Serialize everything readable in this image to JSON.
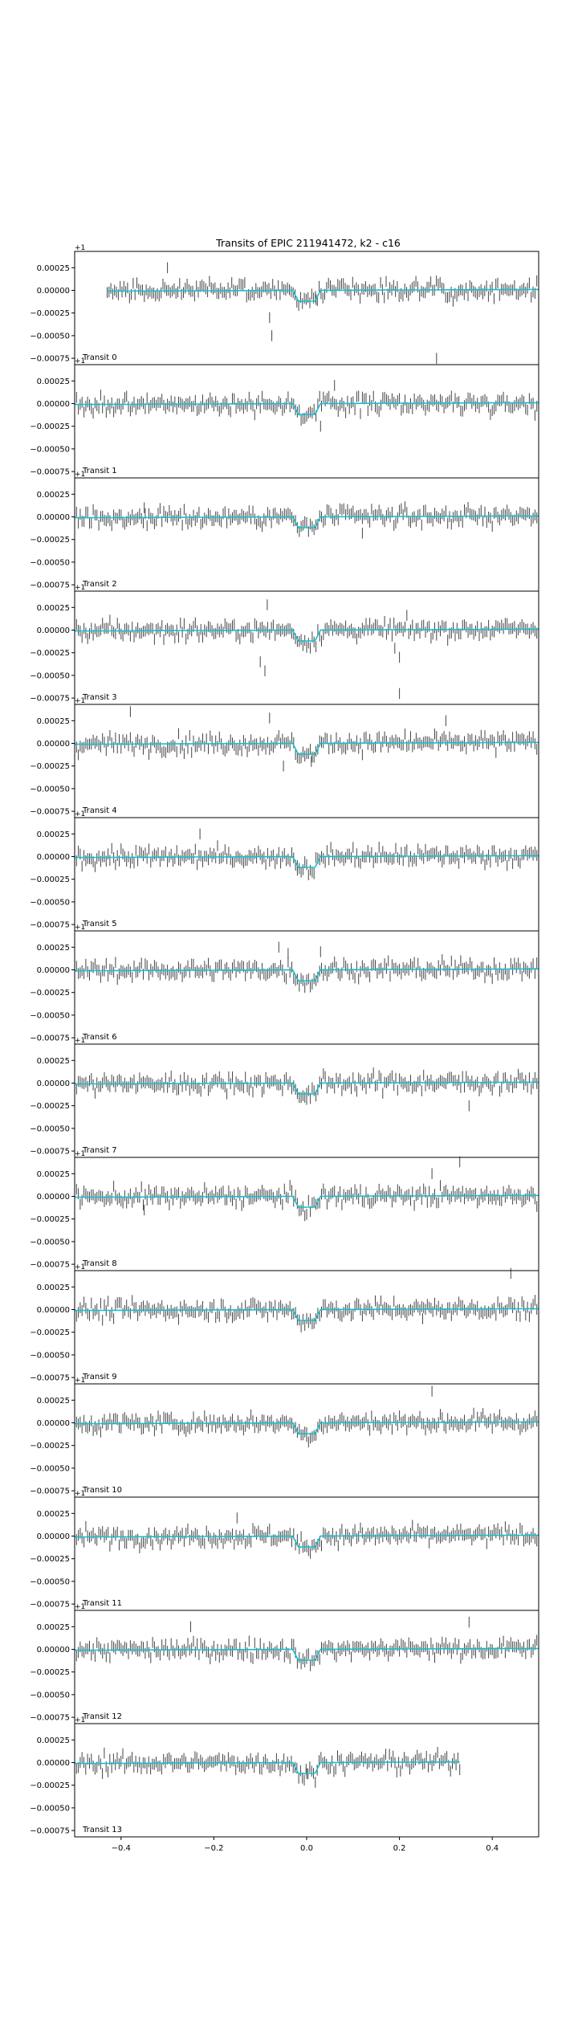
{
  "chart_data": {
    "type": "scatter",
    "title": "Transits of EPIC 211941472, k2 - c16",
    "xlabel": "",
    "ylabel": "",
    "xlim": [
      -0.5,
      0.5
    ],
    "ylim": [
      -0.00082,
      0.00043
    ],
    "y_offset_label": "+1",
    "x_ticks": [
      -0.4,
      -0.2,
      0.0,
      0.2,
      0.4
    ],
    "x_tick_labels": [
      "−0.4",
      "−0.2",
      "0.0",
      "0.2",
      "0.4"
    ],
    "y_ticks": [
      0.00025,
      0.0,
      -0.00025,
      -0.0005,
      -0.00075
    ],
    "y_tick_labels": [
      "0.00025",
      "0.00000",
      "−0.00025",
      "−0.00050",
      "−0.00075"
    ],
    "grid": false,
    "error_bar_halfwidth": 6e-05,
    "colors": {
      "data": "#444444",
      "model": "#17becf",
      "axes": "#000000"
    },
    "transit_model": {
      "depth": 0.00012,
      "duration": 0.06,
      "ingress": 0.012,
      "baseline_slope": 2e-05
    },
    "transits": [
      {
        "label": "Transit 0",
        "x_start": -0.43,
        "x_end": 0.5,
        "outliers": [
          [
            -0.08,
            -0.0003
          ],
          [
            -0.075,
            -0.0005
          ],
          [
            0.28,
            -0.00075
          ],
          [
            0.02,
            -0.0001
          ],
          [
            -0.3,
            0.00025
          ]
        ]
      },
      {
        "label": "Transit 1",
        "x_start": -0.5,
        "x_end": 0.5,
        "outliers": [
          [
            0.03,
            -0.00025
          ],
          [
            0.06,
            0.0002
          ]
        ]
      },
      {
        "label": "Transit 2",
        "x_start": -0.5,
        "x_end": 0.5,
        "outliers": [
          [
            0.12,
            -0.00018
          ],
          [
            -0.35,
            0.0001
          ]
        ]
      },
      {
        "label": "Transit 3",
        "x_start": -0.5,
        "x_end": 0.5,
        "outliers": [
          [
            -0.1,
            -0.00035
          ],
          [
            -0.09,
            -0.00045
          ],
          [
            -0.085,
            0.00028
          ],
          [
            0.19,
            -0.0002
          ],
          [
            0.2,
            -0.0003
          ],
          [
            0.2,
            -0.0007
          ]
        ]
      },
      {
        "label": "Transit 4",
        "x_start": -0.5,
        "x_end": 0.5,
        "outliers": [
          [
            -0.38,
            0.00035
          ],
          [
            -0.08,
            0.00028
          ],
          [
            -0.05,
            -0.00025
          ],
          [
            0.3,
            0.00025
          ],
          [
            0.01,
            -0.0002
          ]
        ]
      },
      {
        "label": "Transit 5",
        "x_start": -0.5,
        "x_end": 0.5,
        "outliers": [
          [
            -0.23,
            0.00025
          ],
          [
            -0.02,
            -0.0001
          ]
        ]
      },
      {
        "label": "Transit 6",
        "x_start": -0.5,
        "x_end": 0.5,
        "outliers": [
          [
            -0.06,
            0.00025
          ],
          [
            -0.04,
            0.00018
          ],
          [
            0.03,
            0.0002
          ]
        ]
      },
      {
        "label": "Transit 7",
        "x_start": -0.5,
        "x_end": 0.5,
        "outliers": [
          [
            0.35,
            -0.00025
          ],
          [
            0.0,
            -0.00018
          ]
        ]
      },
      {
        "label": "Transit 8",
        "x_start": -0.5,
        "x_end": 0.5,
        "outliers": [
          [
            0.33,
            0.00038
          ],
          [
            0.27,
            0.00025
          ],
          [
            -0.35,
            -0.00015
          ]
        ]
      },
      {
        "label": "Transit 9",
        "x_start": -0.5,
        "x_end": 0.5,
        "outliers": [
          [
            0.44,
            0.0004
          ],
          [
            0.25,
            -0.0001
          ]
        ]
      },
      {
        "label": "Transit 10",
        "x_start": -0.5,
        "x_end": 0.5,
        "outliers": [
          [
            0.27,
            0.00035
          ],
          [
            0.0,
            -0.00015
          ]
        ]
      },
      {
        "label": "Transit 11",
        "x_start": -0.5,
        "x_end": 0.5,
        "outliers": [
          [
            -0.15,
            0.0002
          ],
          [
            0.0,
            -0.0001
          ]
        ]
      },
      {
        "label": "Transit 12",
        "x_start": -0.5,
        "x_end": 0.5,
        "outliers": [
          [
            0.35,
            0.0003
          ],
          [
            -0.25,
            0.00025
          ],
          [
            0.0,
            -0.0001
          ]
        ]
      },
      {
        "label": "Transit 13",
        "x_start": -0.5,
        "x_end": 0.33,
        "outliers": [
          [
            0.0,
            -0.00012
          ]
        ]
      }
    ]
  }
}
